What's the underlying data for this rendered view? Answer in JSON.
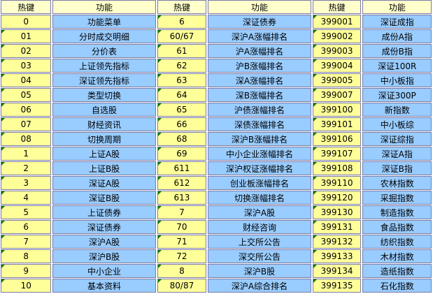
{
  "headers": [
    "热键",
    "功能",
    "热键",
    "功能",
    "热键",
    "功能"
  ],
  "colors": {
    "header": "#ffffcc",
    "hotkey": "#ffff99",
    "function": "#99ccff",
    "marker": "#008000"
  },
  "rows": [
    [
      "0",
      "功能菜单",
      "6",
      "深证债券",
      "399001",
      "深证成指"
    ],
    [
      "01",
      "分时成交明细",
      "60/67",
      "深沪A涨幅排名",
      "399002",
      "成份A指"
    ],
    [
      "02",
      "分价表",
      "61",
      "沪A涨幅排名",
      "399003",
      "成份B指"
    ],
    [
      "03",
      "上证领先指标",
      "62",
      "沪B涨幅排名",
      "399004",
      "深证100R"
    ],
    [
      "04",
      "深证领先指标",
      "63",
      "深A涨幅排名",
      "399005",
      "中小板指"
    ],
    [
      "05",
      "类型切换",
      "64",
      "深B涨幅排名",
      "399007",
      "深证300P"
    ],
    [
      "06",
      "自选股",
      "65",
      "沪债涨幅排名",
      "399100",
      "新指数"
    ],
    [
      "07",
      "财经资讯",
      "66",
      "深债涨幅排名",
      "399101",
      "中小板综"
    ],
    [
      "08",
      "切换周期",
      "68",
      "深沪B涨幅排名",
      "399106",
      "深证综指"
    ],
    [
      "1",
      "上证A股",
      "69",
      "中小企业涨幅排名",
      "399107",
      "深证A指"
    ],
    [
      "2",
      "上证B股",
      "611",
      "深沪权证涨幅排名",
      "399108",
      "深证B指"
    ],
    [
      "3",
      "深证A股",
      "612",
      "创业板涨幅排名",
      "399110",
      "农林指数"
    ],
    [
      "4",
      "深证B股",
      "613",
      "切换涨幅排名",
      "399120",
      "采掘指数"
    ],
    [
      "5",
      "上证债券",
      "7",
      "深沪A股",
      "399130",
      "制造指数"
    ],
    [
      "6",
      "深证债券",
      "70",
      "财经咨询",
      "399131",
      "食品指数"
    ],
    [
      "7",
      "深沪A股",
      "71",
      "上交所公告",
      "399132",
      "纺织指数"
    ],
    [
      "8",
      "深沪B股",
      "72",
      "深交所公告",
      "399133",
      "木材指数"
    ],
    [
      "9",
      "中小企业",
      "8",
      "深沪B股",
      "399134",
      "造纸指数"
    ],
    [
      "10",
      "基本资料",
      "80/87",
      "深沪A综合排名",
      "399135",
      "石化指数"
    ]
  ]
}
